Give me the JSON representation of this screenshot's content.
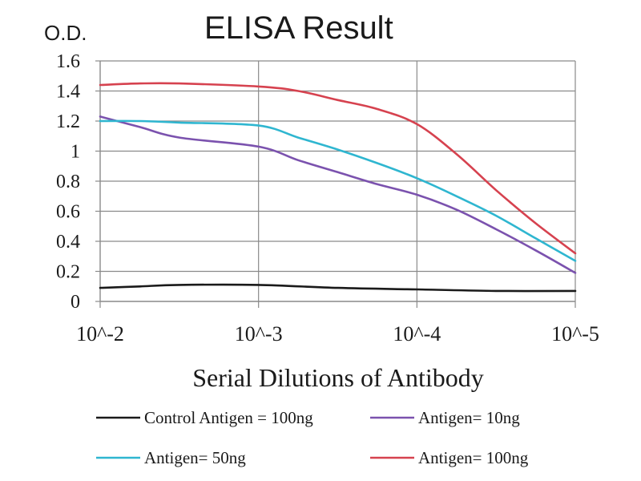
{
  "chart_data": {
    "type": "line",
    "title": "ELISA Result",
    "ylabel": "O.D.",
    "xlabel": "Serial Dilutions of Antibody",
    "x": [
      "10^-2",
      "10^-3",
      "10^-4",
      "10^-5"
    ],
    "x_values": [
      0.01,
      0.001,
      0.0001,
      1e-05
    ],
    "x_scale": "log",
    "ylim": [
      0,
      1.6
    ],
    "yticks": [
      "0",
      "0.2",
      "0.4",
      "0.6",
      "0.8",
      "1",
      "1.2",
      "1.4",
      "1.6"
    ],
    "ytick_values": [
      0,
      0.2,
      0.4,
      0.6,
      0.8,
      1.0,
      1.2,
      1.4,
      1.6
    ],
    "grid": true,
    "legend_position": "bottom",
    "series": [
      {
        "name": "Control Antigen = 100ng",
        "color": "#1a1a1a",
        "values": [
          0.09,
          0.11,
          0.08,
          0.07
        ],
        "curve": [
          [
            0.01,
            0.09
          ],
          [
            0.0056,
            0.1
          ],
          [
            0.00316,
            0.11
          ],
          [
            0.001,
            0.11
          ],
          [
            0.000316,
            0.09
          ],
          [
            0.0001,
            0.08
          ],
          [
            3.16e-05,
            0.07
          ],
          [
            1e-05,
            0.07
          ]
        ]
      },
      {
        "name": "Antigen= 10ng",
        "color": "#7b52ae",
        "values": [
          1.23,
          1.03,
          0.71,
          0.19
        ],
        "curve": [
          [
            0.01,
            1.23
          ],
          [
            0.0056,
            1.16
          ],
          [
            0.00316,
            1.09
          ],
          [
            0.001,
            1.03
          ],
          [
            0.000562,
            0.94
          ],
          [
            0.000316,
            0.86
          ],
          [
            0.000178,
            0.78
          ],
          [
            0.0001,
            0.71
          ],
          [
            5.62e-05,
            0.61
          ],
          [
            3.16e-05,
            0.48
          ],
          [
            1.78e-05,
            0.34
          ],
          [
            1e-05,
            0.19
          ]
        ]
      },
      {
        "name": "Antigen= 50ng",
        "color": "#2fb6d0",
        "values": [
          1.2,
          1.17,
          0.82,
          0.27
        ],
        "curve": [
          [
            0.01,
            1.2
          ],
          [
            0.0056,
            1.2
          ],
          [
            0.00316,
            1.19
          ],
          [
            0.001,
            1.17
          ],
          [
            0.000562,
            1.09
          ],
          [
            0.000316,
            1.01
          ],
          [
            0.000178,
            0.92
          ],
          [
            0.0001,
            0.82
          ],
          [
            5.62e-05,
            0.7
          ],
          [
            3.16e-05,
            0.57
          ],
          [
            1.78e-05,
            0.42
          ],
          [
            1e-05,
            0.27
          ]
        ]
      },
      {
        "name": "Antigen= 100ng",
        "color": "#d6424f",
        "values": [
          1.44,
          1.43,
          1.18,
          0.32
        ],
        "curve": [
          [
            0.01,
            1.44
          ],
          [
            0.0056,
            1.45
          ],
          [
            0.00316,
            1.45
          ],
          [
            0.001,
            1.43
          ],
          [
            0.000562,
            1.4
          ],
          [
            0.000316,
            1.34
          ],
          [
            0.000178,
            1.28
          ],
          [
            0.0001,
            1.18
          ],
          [
            5.62e-05,
            0.98
          ],
          [
            3.16e-05,
            0.74
          ],
          [
            1.78e-05,
            0.52
          ],
          [
            1e-05,
            0.32
          ]
        ]
      }
    ]
  }
}
